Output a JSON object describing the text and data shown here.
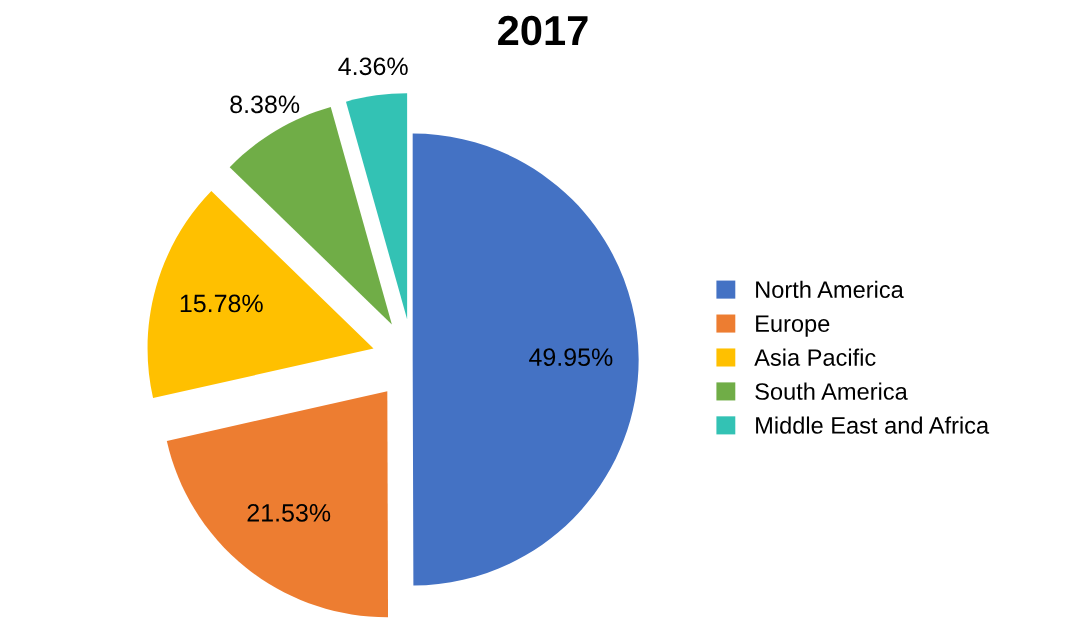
{
  "chart_data": {
    "type": "pie",
    "title": "2017",
    "categories": [
      "North America",
      "Europe",
      "Asia Pacific",
      "South America",
      "Middle East and Africa"
    ],
    "values": [
      49.95,
      21.53,
      15.78,
      8.38,
      4.36
    ],
    "colors": [
      "#4472c4",
      "#ed7d31",
      "#ffc000",
      "#70ad47",
      "#33c2b4"
    ],
    "value_labels": [
      "49.95%",
      "21.53%",
      "15.78%",
      "8.38%",
      "4.36%"
    ],
    "legend": "right"
  }
}
